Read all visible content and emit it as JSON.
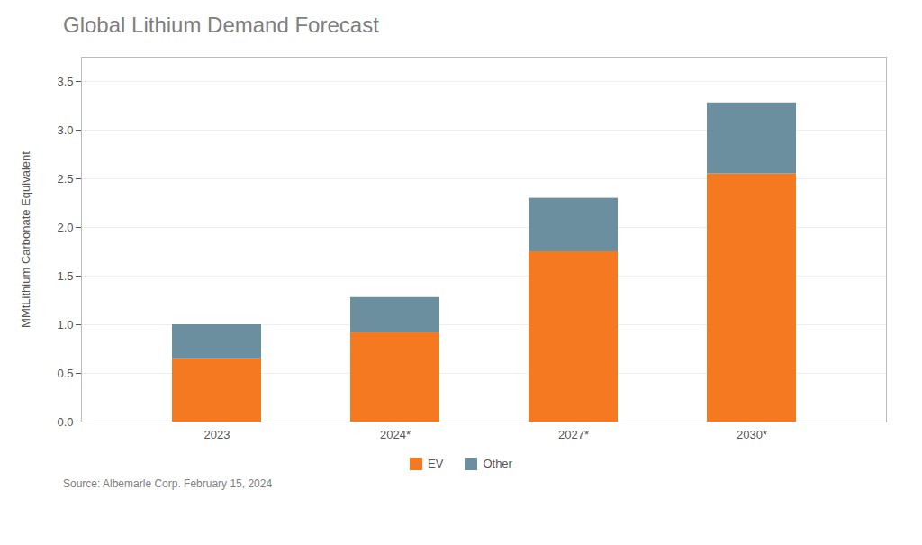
{
  "chart_data": {
    "type": "bar",
    "title": "Global Lithium Demand Forecast",
    "ylabel": "MMtLithium Carbonate Equivalent",
    "source": "Source: Albemarle Corp. February 15, 2024",
    "categories": [
      "2023",
      "2024*",
      "2027*",
      "2030*"
    ],
    "series": [
      {
        "name": "EV",
        "color": "#F47920",
        "values": [
          0.65,
          0.92,
          1.75,
          2.55
        ]
      },
      {
        "name": "Other",
        "color": "#6B8F9E",
        "values": [
          0.35,
          0.36,
          0.55,
          0.73
        ]
      }
    ],
    "stacked": true,
    "ylim": [
      0,
      3.75
    ],
    "yticks": [
      {
        "value": 0,
        "label": "0.0"
      },
      0.5,
      {
        "value": 1,
        "label": "1.0"
      },
      1.5,
      {
        "value": 2,
        "label": "2.0"
      },
      2.5,
      {
        "value": 3,
        "label": "3.0"
      },
      3.5
    ],
    "grid": true,
    "legend": "bottom"
  }
}
